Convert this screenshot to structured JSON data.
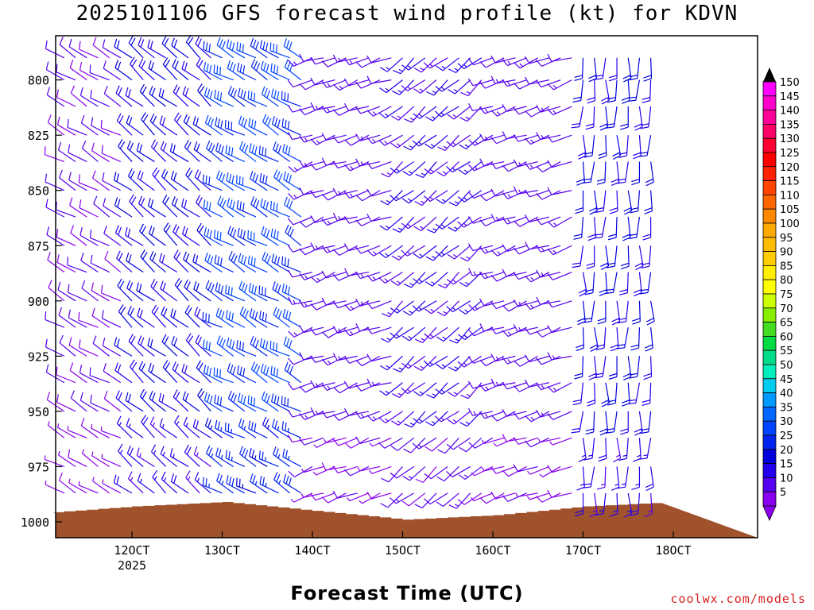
{
  "title": "2025101106 GFS forecast wind profile (kt) for KDVN",
  "xlabel": "Forecast Time (UTC)",
  "credit": "coolwx.com/models",
  "chart_data": {
    "type": "wind-barb-time-height",
    "title": "2025101106 GFS forecast wind profile (kt) for KDVN",
    "xlabel": "Forecast Time (UTC)",
    "ylabel": "",
    "y_axis": {
      "range": [
        1000,
        780
      ],
      "ticks": [
        800,
        825,
        850,
        875,
        900,
        925,
        950,
        975,
        1000
      ]
    },
    "x_axis": {
      "ticks": [
        "12OCT",
        "13OCT",
        "14OCT",
        "15OCT",
        "16OCT",
        "17OCT",
        "18OCT"
      ],
      "year_label": "2025"
    },
    "colorbar": {
      "labels": [
        150,
        145,
        140,
        135,
        130,
        125,
        120,
        115,
        110,
        105,
        100,
        95,
        90,
        85,
        80,
        75,
        70,
        65,
        60,
        55,
        50,
        45,
        40,
        35,
        30,
        25,
        20,
        15,
        10,
        5
      ],
      "colors": [
        "#ff00ff",
        "#ff00cc",
        "#ff0099",
        "#ff0066",
        "#ff0033",
        "#ff0000",
        "#ff2200",
        "#ff4400",
        "#ff6600",
        "#ff8800",
        "#ffaa00",
        "#ffbb00",
        "#ffcc00",
        "#ffee00",
        "#ffff00",
        "#ccff00",
        "#88ee00",
        "#44dd22",
        "#00dd44",
        "#00dd88",
        "#00eebb",
        "#00ccee",
        "#0099ff",
        "#0066ff",
        "#0044ff",
        "#0022ee",
        "#0000dd",
        "#2200ee",
        "#5500ee",
        "#8800ee"
      ]
    },
    "terrain_color": "#a0522d",
    "levels": [
      790,
      800,
      812,
      825,
      837,
      850,
      862,
      875,
      887,
      900,
      912,
      925,
      937,
      950,
      962,
      975,
      987
    ],
    "times_per_day": 8,
    "n_times": 55,
    "surface_pressure_by_day": {
      "11OCT": 996,
      "12OCT": 993,
      "13OCT": 991,
      "14OCT": 995,
      "15OCT": 999,
      "16OCT": 997,
      "17OCT": 993,
      "18OCT": 991
    },
    "wind_regimes_kt": {
      "11OCT": {
        "dir": 300,
        "speed": 10
      },
      "12OCT": {
        "dir": 310,
        "speed": 20
      },
      "13OCT": {
        "dir": 300,
        "speed": 30
      },
      "14OCT": {
        "dir": 250,
        "speed": 12
      },
      "15OCT": {
        "dir": 230,
        "speed": 15
      },
      "16OCT": {
        "dir": 250,
        "speed": 12
      },
      "17OCT": {
        "dir": 180,
        "speed": 20
      },
      "18OCT": {
        "dir": 190,
        "speed": 28
      }
    }
  }
}
